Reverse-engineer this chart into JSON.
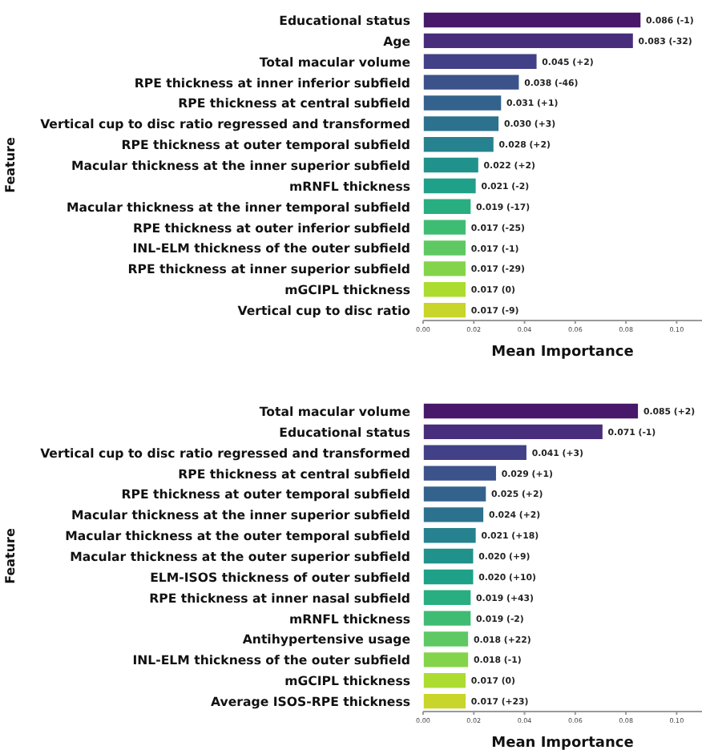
{
  "chart_data": [
    {
      "type": "bar",
      "orientation": "horizontal",
      "xlabel": "Mean Importance",
      "ylabel": "Feature",
      "categories": [
        "Educational status",
        "Age",
        "Total macular volume",
        "RPE thickness at inner inferior subfield",
        "RPE thickness at central subfield",
        "Vertical cup to disc ratio regressed and transformed",
        "RPE thickness at outer temporal subfield",
        "Macular thickness at the inner superior subfield",
        "mRNFL thickness",
        "Macular thickness at the inner temporal subfield",
        "RPE thickness at outer inferior subfield",
        "INL-ELM thickness of the outer subfield",
        "RPE thickness at inner superior subfield",
        "mGCIPL thickness",
        "Vertical cup to disc ratio"
      ],
      "values": [
        0.086,
        0.083,
        0.045,
        0.038,
        0.031,
        0.03,
        0.028,
        0.022,
        0.021,
        0.019,
        0.017,
        0.017,
        0.017,
        0.017,
        0.017
      ],
      "value_labels": [
        "0.086 (-1)",
        "0.083 (-32)",
        "0.045 (+2)",
        "0.038 (-46)",
        "0.031 (+1)",
        "0.030 (+3)",
        "0.028 (+2)",
        "0.022 (+2)",
        "0.021 (-2)",
        "0.019 (-17)",
        "0.017 (-25)",
        "0.017 (-1)",
        "0.017 (-29)",
        "0.017 (0)",
        "0.017 (-9)"
      ],
      "colors": [
        "#48186a",
        "#472d7b",
        "#424086",
        "#3b528b",
        "#33638d",
        "#2c728e",
        "#26828e",
        "#21918c",
        "#1fa088",
        "#28ae80",
        "#3fbc73",
        "#5ec962",
        "#84d44b",
        "#addc30",
        "#c8d52a"
      ],
      "xlim": [
        0,
        0.11
      ],
      "xticks": [
        {
          "value": 0,
          "label": "0.00"
        },
        {
          "value": 0.02,
          "label": "0.02"
        },
        {
          "value": 0.04,
          "label": "0.04"
        },
        {
          "value": 0.06,
          "label": "0.06"
        },
        {
          "value": 0.08,
          "label": "0.08"
        },
        {
          "value": 0.1,
          "label": "0.10"
        }
      ]
    },
    {
      "type": "bar",
      "orientation": "horizontal",
      "xlabel": "Mean Importance",
      "ylabel": "Feature",
      "categories": [
        "Total macular volume",
        "Educational status",
        "Vertical cup to disc ratio regressed and transformed",
        "RPE thickness at central subfield",
        "RPE thickness at outer temporal subfield",
        "Macular thickness at the inner superior subfield",
        "Macular thickness at the outer temporal subfield",
        "Macular thickness at the outer superior subfield",
        "ELM-ISOS thickness of outer subfield",
        "RPE thickness at inner nasal subfield",
        "mRNFL thickness",
        "Antihypertensive usage",
        "INL-ELM thickness of the outer subfield",
        "mGCIPL thickness",
        "Average ISOS-RPE thickness"
      ],
      "values": [
        0.085,
        0.071,
        0.041,
        0.029,
        0.025,
        0.024,
        0.021,
        0.02,
        0.02,
        0.019,
        0.019,
        0.018,
        0.018,
        0.017,
        0.017
      ],
      "value_labels": [
        "0.085 (+2)",
        "0.071 (-1)",
        "0.041 (+3)",
        "0.029 (+1)",
        "0.025 (+2)",
        "0.024 (+2)",
        "0.021 (+18)",
        "0.020 (+9)",
        "0.020 (+10)",
        "0.019 (+43)",
        "0.019 (-2)",
        "0.018 (+22)",
        "0.018 (-1)",
        "0.017 (0)",
        "0.017 (+23)"
      ],
      "colors": [
        "#48186a",
        "#472d7b",
        "#424086",
        "#3b528b",
        "#33638d",
        "#2c728e",
        "#26828e",
        "#21918c",
        "#1fa088",
        "#28ae80",
        "#3fbc73",
        "#5ec962",
        "#84d44b",
        "#addc30",
        "#c8d52a"
      ],
      "xlim": [
        0,
        0.11
      ],
      "xticks": [
        {
          "value": 0,
          "label": "0.00"
        },
        {
          "value": 0.02,
          "label": "0.02"
        },
        {
          "value": 0.04,
          "label": "0.04"
        },
        {
          "value": 0.06,
          "label": "0.06"
        },
        {
          "value": 0.08,
          "label": "0.08"
        },
        {
          "value": 0.1,
          "label": "0.10"
        }
      ]
    }
  ]
}
